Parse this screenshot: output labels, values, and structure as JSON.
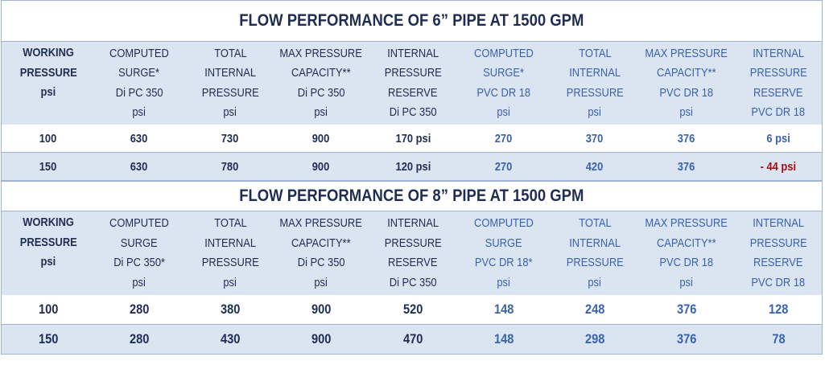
{
  "sections": [
    {
      "title": "FLOW PERFORMANCE OF 6” PIPE AT 1500 GPM",
      "headers": [
        [
          "WORKING",
          "PRESSURE",
          "psi"
        ],
        [
          "COMPUTED",
          "SURGE*",
          "Di PC 350",
          "psi"
        ],
        [
          "TOTAL",
          "INTERNAL",
          "PRESSURE",
          "psi"
        ],
        [
          "MAX PRESSURE",
          "CAPACITY**",
          "Di PC 350",
          "psi"
        ],
        [
          "INTERNAL",
          "PRESSURE",
          "RESERVE",
          "Di PC 350"
        ],
        [
          "COMPUTED",
          "SURGE*",
          "PVC DR 18",
          "psi"
        ],
        [
          "TOTAL",
          "INTERNAL",
          "PRESSURE",
          "psi"
        ],
        [
          "MAX PRESSURE",
          "CAPACITY**",
          "PVC DR 18",
          "psi"
        ],
        [
          "INTERNAL",
          "PRESSURE",
          "RESERVE",
          "PVC DR 18"
        ]
      ],
      "rows": [
        [
          "100",
          "630",
          "730",
          "900",
          "170 psi",
          "270",
          "370",
          "376",
          "6 psi"
        ],
        [
          "150",
          "630",
          "780",
          "900",
          "120 psi",
          "270",
          "420",
          "376",
          "- 44 psi"
        ]
      ]
    },
    {
      "title": "FLOW PERFORMANCE OF 8” PIPE AT 1500 GPM",
      "headers": [
        [
          "WORKING",
          "PRESSURE",
          "psi"
        ],
        [
          "COMPUTED",
          "SURGE",
          "Di PC 350*",
          "psi"
        ],
        [
          "TOTAL",
          "INTERNAL",
          "PRESSURE",
          "psi"
        ],
        [
          "MAX PRESSURE",
          "CAPACITY**",
          "Di PC 350",
          "psi"
        ],
        [
          "INTERNAL",
          "PRESSURE",
          "RESERVE",
          "Di PC 350"
        ],
        [
          "COMPUTED",
          "SURGE",
          "PVC DR 18*",
          "psi"
        ],
        [
          "TOTAL",
          "INTERNAL",
          "PRESSURE",
          "psi"
        ],
        [
          "MAX PRESSURE",
          "CAPACITY**",
          "PVC DR 18",
          "psi"
        ],
        [
          "INTERNAL",
          "PRESSURE",
          "RESERVE",
          "PVC DR 18"
        ]
      ],
      "rows": [
        [
          "100",
          "280",
          "380",
          "900",
          "520",
          "148",
          "248",
          "376",
          "128"
        ],
        [
          "150",
          "280",
          "430",
          "900",
          "470",
          "148",
          "298",
          "376",
          "78"
        ]
      ]
    }
  ]
}
